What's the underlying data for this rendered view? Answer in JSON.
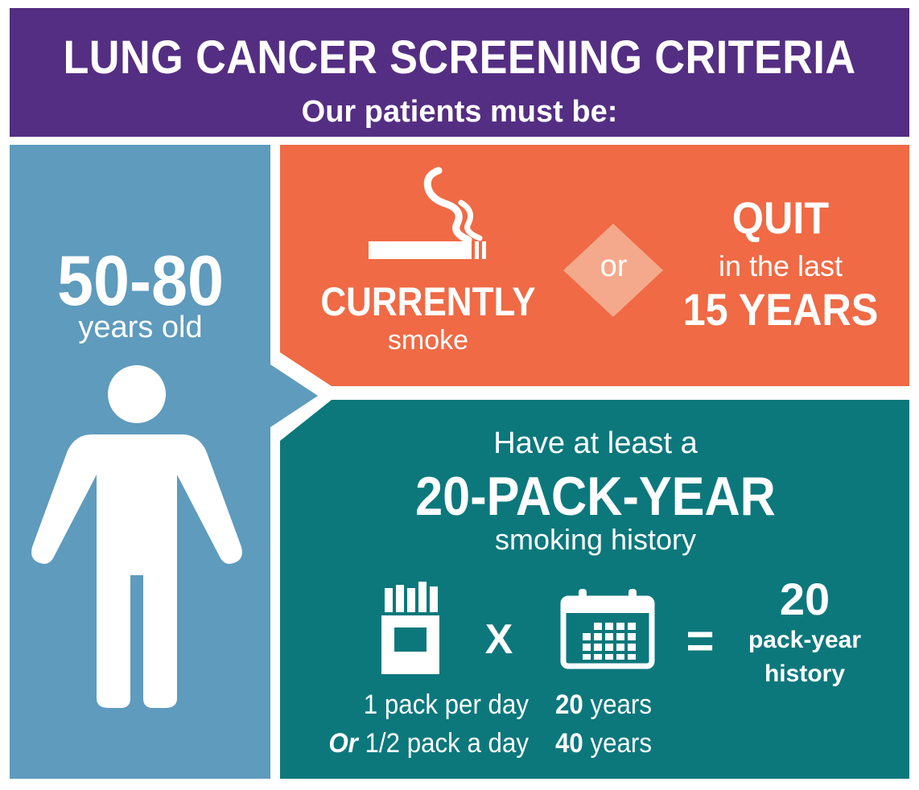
{
  "header": {
    "title": "LUNG CANCER SCREENING CRITERIA",
    "subtitle": "Our patients must be:"
  },
  "age": {
    "range": "50-80",
    "label": "years old",
    "icon": "person-icon"
  },
  "smoking_status": {
    "current_title": "CURRENTLY",
    "current_sub": "smoke",
    "connector": "or",
    "quit_title": "QUIT",
    "quit_sub": "in the last",
    "quit_years": "15 YEARS",
    "icon": "cigarette-icon"
  },
  "pack_years": {
    "intro": "Have at least a",
    "headline": "20-PACK-YEAR",
    "sub": "smoking history",
    "times": "X",
    "equals": "=",
    "result_number": "20",
    "result_label_1": "pack-year",
    "result_label_2": "history",
    "examples": [
      {
        "prefix": "",
        "pack": "1 pack per day",
        "years_num": "20",
        "years_label": "years"
      },
      {
        "prefix": "Or",
        "pack": "1/2 pack a day",
        "years_num": "40",
        "years_label": "years"
      }
    ],
    "icons": [
      "cigarette-pack-icon",
      "calendar-icon"
    ]
  },
  "colors": {
    "header": "#542e82",
    "age_panel": "#5e9bbd",
    "smoking_panel": "#ef6a45",
    "pack_panel": "#0c787c",
    "diamond": "#f5a98c"
  }
}
